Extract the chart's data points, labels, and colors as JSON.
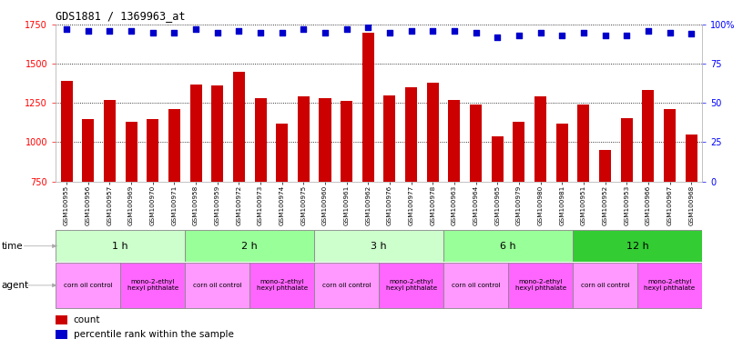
{
  "title": "GDS1881 / 1369963_at",
  "gsm_labels": [
    "GSM100955",
    "GSM100956",
    "GSM100957",
    "GSM100969",
    "GSM100970",
    "GSM100971",
    "GSM100958",
    "GSM100959",
    "GSM100972",
    "GSM100973",
    "GSM100974",
    "GSM100975",
    "GSM100960",
    "GSM100961",
    "GSM100962",
    "GSM100976",
    "GSM100977",
    "GSM100978",
    "GSM100963",
    "GSM100964",
    "GSM100965",
    "GSM100979",
    "GSM100980",
    "GSM100981",
    "GSM100951",
    "GSM100952",
    "GSM100953",
    "GSM100966",
    "GSM100967",
    "GSM100968"
  ],
  "bar_values": [
    1390,
    1150,
    1270,
    1130,
    1150,
    1210,
    1370,
    1360,
    1450,
    1280,
    1120,
    1290,
    1280,
    1265,
    1700,
    1300,
    1350,
    1380,
    1270,
    1240,
    1035,
    1130,
    1290,
    1120,
    1240,
    950,
    1155,
    1330,
    1210,
    1050
  ],
  "percentile_values": [
    97,
    96,
    96,
    96,
    95,
    95,
    97,
    95,
    96,
    95,
    95,
    97,
    95,
    97,
    98,
    95,
    96,
    96,
    96,
    95,
    92,
    93,
    95,
    93,
    95,
    93,
    93,
    96,
    95,
    94
  ],
  "bar_color": "#cc0000",
  "dot_color": "#0000cc",
  "ylim_left": [
    750,
    1750
  ],
  "ylim_right": [
    0,
    100
  ],
  "yticks_left": [
    750,
    1000,
    1250,
    1500,
    1750
  ],
  "yticks_right": [
    0,
    25,
    50,
    75,
    100
  ],
  "time_groups": [
    {
      "label": "1 h",
      "start": 0,
      "end": 6,
      "color": "#ccffcc"
    },
    {
      "label": "2 h",
      "start": 6,
      "end": 12,
      "color": "#99ff99"
    },
    {
      "label": "3 h",
      "start": 12,
      "end": 18,
      "color": "#ccffcc"
    },
    {
      "label": "6 h",
      "start": 18,
      "end": 24,
      "color": "#99ff99"
    },
    {
      "label": "12 h",
      "start": 24,
      "end": 30,
      "color": "#33cc33"
    }
  ],
  "agent_groups": [
    {
      "label": "corn oil control",
      "start": 0,
      "end": 3,
      "color": "#ff99ff"
    },
    {
      "label": "mono-2-ethyl\nhexyl phthalate",
      "start": 3,
      "end": 6,
      "color": "#ff66ff"
    },
    {
      "label": "corn oil control",
      "start": 6,
      "end": 9,
      "color": "#ff99ff"
    },
    {
      "label": "mono-2-ethyl\nhexyl phthalate",
      "start": 9,
      "end": 12,
      "color": "#ff66ff"
    },
    {
      "label": "corn oil control",
      "start": 12,
      "end": 15,
      "color": "#ff99ff"
    },
    {
      "label": "mono-2-ethyl\nhexyl phthalate",
      "start": 15,
      "end": 18,
      "color": "#ff66ff"
    },
    {
      "label": "corn oil control",
      "start": 18,
      "end": 21,
      "color": "#ff99ff"
    },
    {
      "label": "mono-2-ethyl\nhexyl phthalate",
      "start": 21,
      "end": 24,
      "color": "#ff66ff"
    },
    {
      "label": "corn oil control",
      "start": 24,
      "end": 27,
      "color": "#ff99ff"
    },
    {
      "label": "mono-2-ethyl\nhexyl phthalate",
      "start": 27,
      "end": 30,
      "color": "#ff66ff"
    }
  ],
  "background_color": "#ffffff",
  "grid_color": "#555555",
  "label_color_time": "#555555",
  "arrow_color": "#999999"
}
